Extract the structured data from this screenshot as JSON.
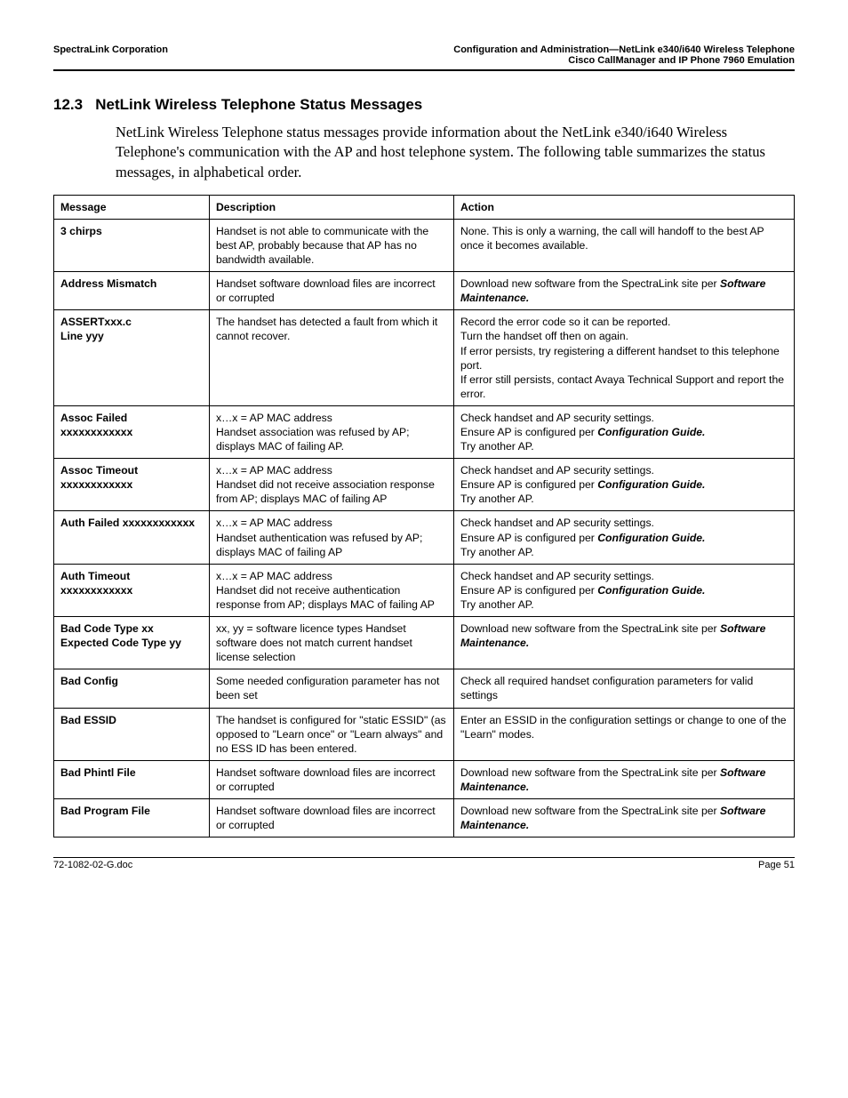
{
  "header": {
    "left": "SpectraLink Corporation",
    "right1": "Configuration and Administration—NetLink e340/i640 Wireless Telephone",
    "right2": "Cisco CallManager and IP Phone 7960 Emulation"
  },
  "section": {
    "number": "12.3",
    "title": "NetLink Wireless Telephone Status Messages",
    "intro": "NetLink Wireless Telephone status messages provide information about the NetLink e340/i640 Wireless Telephone's communication with the AP and host telephone system. The following table summarizes the status messages, in alphabetical order."
  },
  "table": {
    "headers": {
      "c1": "Message",
      "c2": "Description",
      "c3": "Action"
    },
    "rows": [
      {
        "msg": "3 chirps",
        "desc": "Handset is not able to communicate with the best AP, probably because that AP has no bandwidth available.",
        "act": [
          "None. This is only a warning, the call will handoff to the best AP once it becomes available."
        ]
      },
      {
        "msg": "Address Mismatch",
        "desc": "Handset software download files are incorrect or corrupted",
        "act": [
          "Download new software from the SpectraLink site per ",
          {
            "i": "Software Maintenance."
          }
        ]
      },
      {
        "msg": "ASSERTxxx.c\nLine yyy",
        "desc": "The handset has detected a fault from which it cannot recover.",
        "act": [
          "Record the error code so it can be reported.\nTurn the handset off then on again.\nIf error persists, try registering a different handset to this telephone port.\nIf error still persists, contact Avaya Technical Support and report the error."
        ]
      },
      {
        "msg": "Assoc Failed\nxxxxxxxxxxxx",
        "desc": "x…x = AP MAC address\nHandset association was refused by AP; displays MAC of failing AP.",
        "act": [
          "Check handset and AP security settings.\nEnsure AP is configured per ",
          {
            "i": "Configuration Guide."
          },
          "\nTry another AP."
        ]
      },
      {
        "msg": "Assoc Timeout\nxxxxxxxxxxxx",
        "desc": "x…x = AP MAC address\nHandset did not receive association response from AP; displays MAC of failing AP",
        "act": [
          "Check handset and AP security settings.\nEnsure AP is configured per ",
          {
            "i": "Configuration Guide."
          },
          "\nTry another AP."
        ]
      },
      {
        "msg": "Auth Failed  xxxxxxxxxxxx",
        "desc": "x…x = AP MAC address\nHandset authentication was refused by AP; displays MAC of failing AP",
        "act": [
          "Check handset and AP security settings.\nEnsure AP is configured per ",
          {
            "i": "Configuration Guide."
          },
          "\nTry another AP."
        ]
      },
      {
        "msg": "Auth Timeout\nxxxxxxxxxxxx",
        "desc": "x…x = AP MAC address\nHandset did not receive authentication response from AP; displays MAC of failing AP",
        "act": [
          "Check handset and AP security settings.\nEnsure AP is configured per ",
          {
            "i": "Configuration Guide."
          },
          "\nTry another AP."
        ]
      },
      {
        "msg": "Bad Code Type xx\nExpected Code Type yy",
        "desc": "xx, yy = software licence types   Handset software does not match current handset license selection",
        "act": [
          "Download new software from the SpectraLink site per ",
          {
            "i": "Software Maintenance."
          }
        ]
      },
      {
        "msg": "Bad Config",
        "desc": "Some needed configuration parameter has not been set",
        "act": [
          "Check all required handset configuration parameters for valid settings"
        ]
      },
      {
        "msg": "Bad ESSID",
        "desc": "The handset is configured for \"static ESSID\" (as opposed to \"Learn once\" or \"Learn always\" and no ESS ID has been entered.",
        "act": [
          "Enter an ESSID in the configuration settings or change to one of the \"Learn\" modes."
        ]
      },
      {
        "msg": "Bad Phintl File",
        "desc": "Handset software download files are incorrect or corrupted",
        "act": [
          "Download new software from the SpectraLink site per ",
          {
            "i": "Software Maintenance."
          }
        ]
      },
      {
        "msg": "Bad Program File",
        "desc": "Handset software download files are incorrect or corrupted",
        "act": [
          "Download new software from the SpectraLink site per ",
          {
            "i": "Software Maintenance."
          }
        ]
      }
    ]
  },
  "footer": {
    "left": "72-1082-02-G.doc",
    "right": "Page 51"
  }
}
